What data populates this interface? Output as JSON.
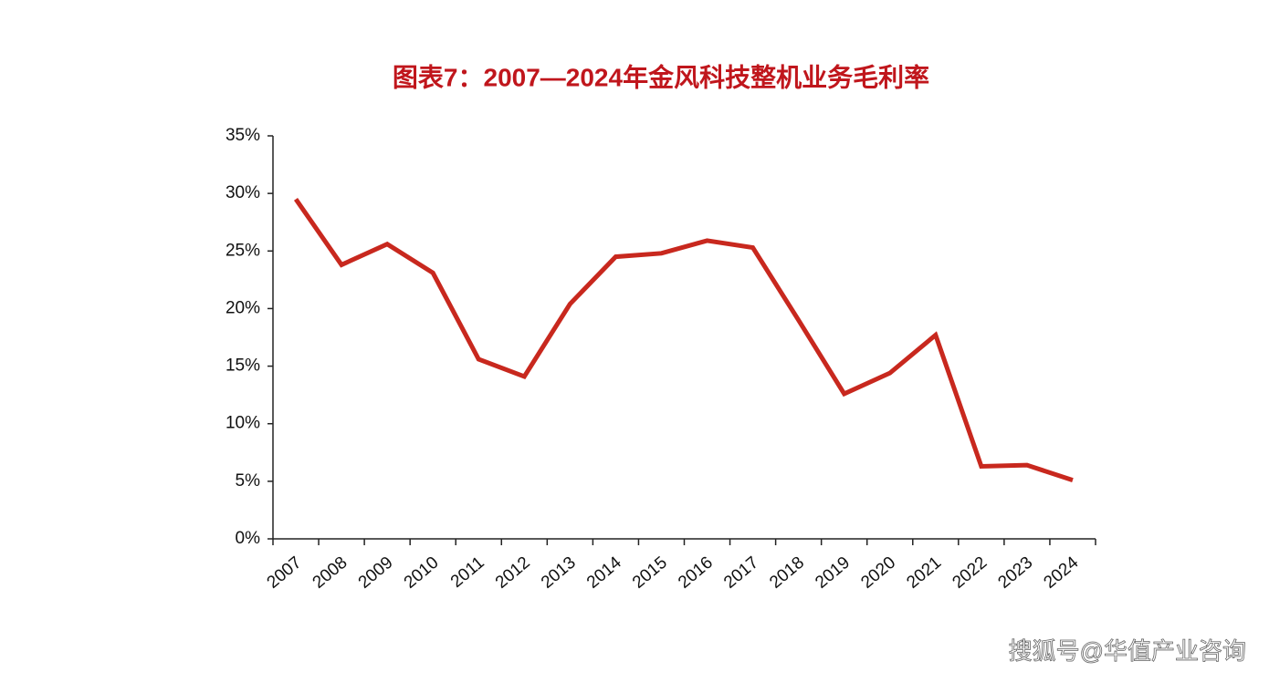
{
  "chart_data": {
    "type": "line",
    "title": "图表7：2007—2024年金风科技整机业务毛利率",
    "categories": [
      "2007",
      "2008",
      "2009",
      "2010",
      "2011",
      "2012",
      "2013",
      "2014",
      "2015",
      "2016",
      "2017",
      "2018",
      "2019",
      "2020",
      "2021",
      "2022",
      "2023",
      "2024"
    ],
    "series": [
      {
        "name": "毛利率",
        "color": "#c8281e",
        "values": [
          29.5,
          23.8,
          25.6,
          23.1,
          15.6,
          14.1,
          20.4,
          24.5,
          24.8,
          25.9,
          25.3,
          19.0,
          12.6,
          14.4,
          17.7,
          6.3,
          6.4,
          5.1
        ]
      }
    ],
    "ylim": [
      0,
      35
    ],
    "yticks": [
      {
        "value": 0,
        "label": "0%"
      },
      {
        "value": 5,
        "label": "5%"
      },
      {
        "value": 10,
        "label": "10%"
      },
      {
        "value": 15,
        "label": "15%"
      },
      {
        "value": 20,
        "label": "20%"
      },
      {
        "value": 25,
        "label": "25%"
      },
      {
        "value": 30,
        "label": "30%"
      },
      {
        "value": 35,
        "label": "35%"
      }
    ],
    "grid": false,
    "watermark": "搜狐号@华值产业咨询"
  }
}
